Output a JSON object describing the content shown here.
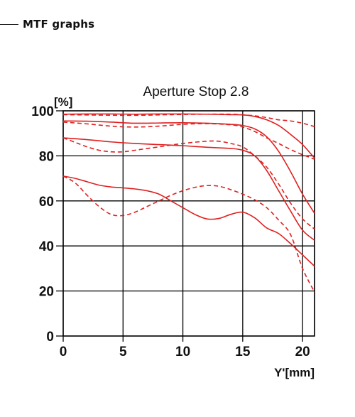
{
  "page": {
    "section_title": "MTF graphs"
  },
  "chart_data": {
    "type": "line",
    "title": "Aperture Stop 2.8",
    "xlabel": "Y'[mm]",
    "ylabel": "[%]",
    "xlim": [
      0,
      21
    ],
    "ylim": [
      0,
      100
    ],
    "xticks": [
      0,
      5,
      10,
      15,
      20
    ],
    "yticks": [
      0,
      20,
      40,
      60,
      80,
      100
    ],
    "grid": true,
    "legend": "none",
    "line_color": "#e02020",
    "grid_color": "#000000",
    "series": [
      {
        "style": "solid",
        "points": [
          [
            0,
            98.5
          ],
          [
            2,
            98.6
          ],
          [
            4,
            98.6
          ],
          [
            6,
            98.5
          ],
          [
            8,
            98.6
          ],
          [
            10,
            98.6
          ],
          [
            12,
            98.5
          ],
          [
            14,
            98.3
          ],
          [
            15,
            98.2
          ],
          [
            16,
            97.5
          ],
          [
            17,
            96.0
          ],
          [
            18,
            93.5
          ],
          [
            19,
            89.5
          ],
          [
            20,
            85.0
          ],
          [
            21,
            79.0
          ]
        ]
      },
      {
        "style": "dashed",
        "points": [
          [
            0,
            98.3
          ],
          [
            3,
            98.1
          ],
          [
            6,
            98.0
          ],
          [
            9,
            98.3
          ],
          [
            12,
            98.5
          ],
          [
            14,
            98.5
          ],
          [
            15,
            98.2
          ],
          [
            16,
            97.8
          ],
          [
            17,
            97.0
          ],
          [
            18,
            96.0
          ],
          [
            19,
            95.5
          ],
          [
            20,
            94.5
          ],
          [
            21,
            93.0
          ]
        ]
      },
      {
        "style": "solid",
        "points": [
          [
            0,
            95.5
          ],
          [
            2,
            95.4
          ],
          [
            4,
            95.0
          ],
          [
            6,
            94.5
          ],
          [
            8,
            94.6
          ],
          [
            10,
            94.7
          ],
          [
            12,
            94.5
          ],
          [
            14,
            94.0
          ],
          [
            15,
            93.5
          ],
          [
            16,
            92.0
          ],
          [
            17,
            88.5
          ],
          [
            18,
            82.0
          ],
          [
            19,
            73.0
          ],
          [
            20,
            63.0
          ],
          [
            21,
            54.5
          ]
        ]
      },
      {
        "style": "dashed",
        "points": [
          [
            0,
            95.0
          ],
          [
            2,
            94.2
          ],
          [
            4,
            93.2
          ],
          [
            6,
            92.8
          ],
          [
            8,
            93.2
          ],
          [
            10,
            94.0
          ],
          [
            12,
            94.3
          ],
          [
            14,
            93.8
          ],
          [
            15,
            92.8
          ],
          [
            16,
            90.8
          ],
          [
            17,
            88.0
          ],
          [
            18,
            85.5
          ],
          [
            19,
            82.8
          ],
          [
            20,
            80.5
          ],
          [
            21,
            78.5
          ]
        ]
      },
      {
        "style": "solid",
        "points": [
          [
            0,
            88.0
          ],
          [
            2,
            87.2
          ],
          [
            4,
            86.2
          ],
          [
            6,
            85.5
          ],
          [
            8,
            85.0
          ],
          [
            10,
            84.5
          ],
          [
            12,
            83.8
          ],
          [
            14,
            83.3
          ],
          [
            15,
            82.5
          ],
          [
            16,
            80.0
          ],
          [
            17,
            73.5
          ],
          [
            18,
            64.5
          ],
          [
            19,
            55.5
          ],
          [
            20,
            47.0
          ],
          [
            21,
            42.5
          ]
        ]
      },
      {
        "style": "dashed",
        "points": [
          [
            0,
            88.0
          ],
          [
            1,
            86.0
          ],
          [
            2,
            84.0
          ],
          [
            3,
            82.5
          ],
          [
            4,
            81.8
          ],
          [
            5,
            81.8
          ],
          [
            6,
            82.5
          ],
          [
            8,
            84.0
          ],
          [
            10,
            85.5
          ],
          [
            12,
            86.5
          ],
          [
            13,
            86.5
          ],
          [
            14,
            85.5
          ],
          [
            15,
            84.0
          ],
          [
            16,
            80.0
          ],
          [
            17,
            75.0
          ],
          [
            18,
            67.5
          ],
          [
            19,
            59.0
          ],
          [
            20,
            52.0
          ],
          [
            21,
            47.5
          ]
        ]
      },
      {
        "style": "solid",
        "points": [
          [
            0,
            71.0
          ],
          [
            1,
            70.0
          ],
          [
            2,
            68.5
          ],
          [
            3,
            67.0
          ],
          [
            4,
            66.2
          ],
          [
            5,
            65.8
          ],
          [
            6,
            65.3
          ],
          [
            7,
            64.5
          ],
          [
            8,
            63.0
          ],
          [
            9,
            60.0
          ],
          [
            10,
            57.0
          ],
          [
            11,
            54.0
          ],
          [
            12,
            52.0
          ],
          [
            13,
            52.2
          ],
          [
            14,
            54.0
          ],
          [
            15,
            55.0
          ],
          [
            16,
            52.5
          ],
          [
            17,
            48.0
          ],
          [
            18,
            45.5
          ],
          [
            19,
            41.0
          ],
          [
            20,
            36.0
          ],
          [
            21,
            31.0
          ]
        ]
      },
      {
        "style": "dashed",
        "points": [
          [
            0,
            71.0
          ],
          [
            1,
            68.0
          ],
          [
            2,
            62.5
          ],
          [
            3,
            57.5
          ],
          [
            4,
            54.0
          ],
          [
            5,
            53.5
          ],
          [
            6,
            55.0
          ],
          [
            7,
            57.5
          ],
          [
            8,
            60.0
          ],
          [
            9,
            62.5
          ],
          [
            10,
            64.5
          ],
          [
            11,
            66.0
          ],
          [
            12,
            66.8
          ],
          [
            13,
            66.5
          ],
          [
            14,
            65.0
          ],
          [
            15,
            63.0
          ],
          [
            16,
            60.5
          ],
          [
            17,
            57.0
          ],
          [
            18,
            51.5
          ],
          [
            19,
            45.0
          ],
          [
            20,
            30.0
          ],
          [
            21,
            19.5
          ]
        ]
      }
    ]
  }
}
